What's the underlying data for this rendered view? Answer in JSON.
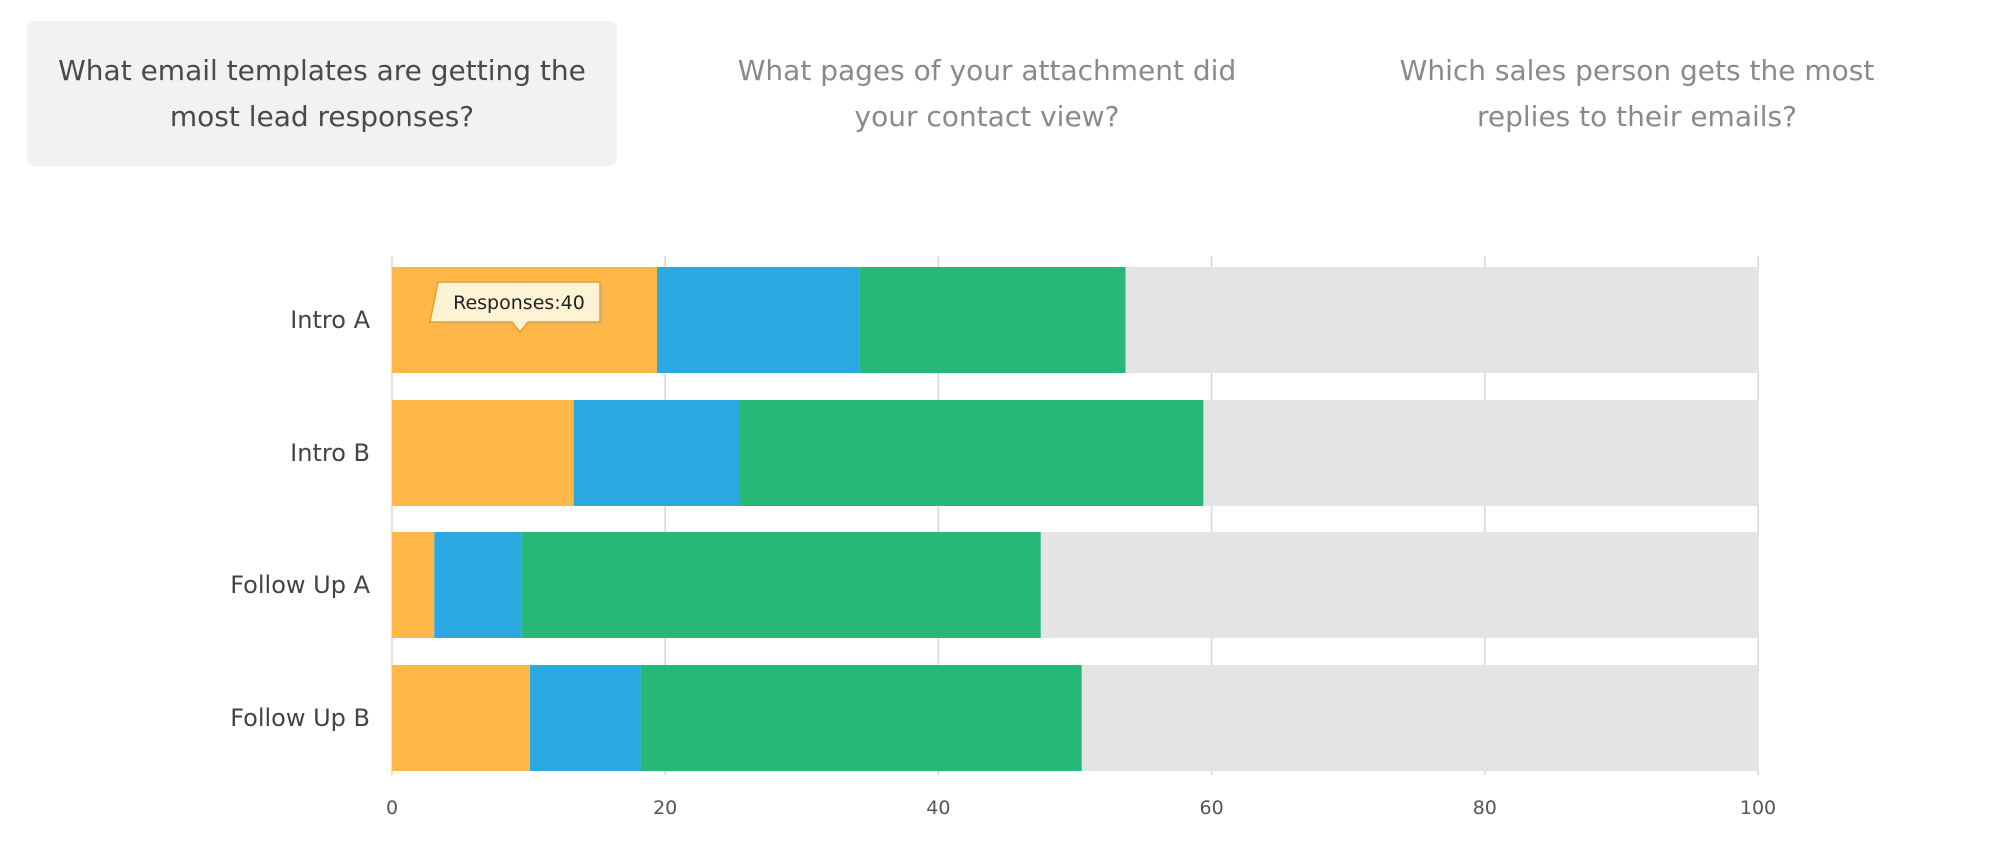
{
  "tabs": [
    {
      "label": "What email templates are getting the most lead responses?",
      "active": true
    },
    {
      "label": "What pages of your attachment did your contact view?",
      "active": false
    },
    {
      "label": "Which sales person gets the most replies to their emails?",
      "active": false
    }
  ],
  "colors": {
    "responses": "#ffb848",
    "blue": "#29a8e2",
    "green": "#27b777",
    "remaining": "#e4e4e4",
    "grid": "#d6d6d6",
    "tooltip_bg": "#fff3d6",
    "tooltip_border": "#e0a030"
  },
  "tooltip": {
    "label": "Responses",
    "value": 40,
    "text": "Responses:40"
  },
  "chart_data": {
    "type": "bar",
    "orientation": "horizontal",
    "stacked": true,
    "categories": [
      "Intro A",
      "Intro B",
      "Follow Up A",
      "Follow Up B"
    ],
    "series": [
      {
        "values": [
          19.4,
          13.3,
          3.1,
          10.1
        ],
        "color": "#ffb848"
      },
      {
        "values": [
          14.8,
          12.1,
          6.4,
          8.1
        ],
        "color": "#29a8e2"
      },
      {
        "values": [
          19.5,
          34.0,
          38.0,
          32.3
        ],
        "color": "#27b777"
      },
      {
        "values": [
          46.3,
          40.6,
          52.5,
          49.5
        ],
        "color": "#e4e4e4"
      }
    ],
    "xlim": [
      0,
      100
    ],
    "xticks": [
      0,
      20,
      40,
      60,
      80,
      100
    ],
    "grid": true,
    "title": "",
    "xlabel": "",
    "ylabel": ""
  }
}
